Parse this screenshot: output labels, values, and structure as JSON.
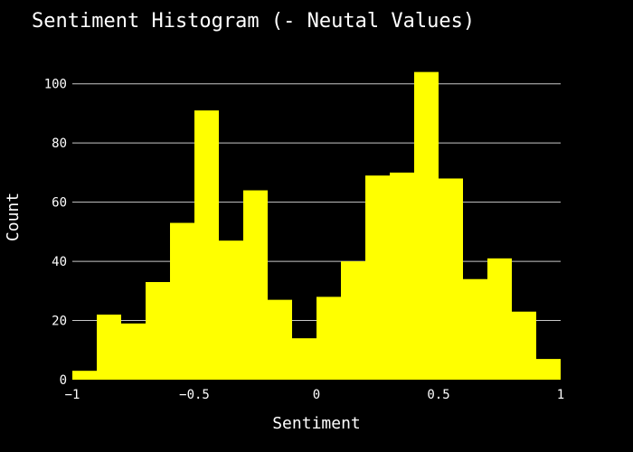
{
  "chart_data": {
    "type": "bar",
    "title": "Sentiment Histogram (- Neutal Values)",
    "xlabel": "Sentiment",
    "ylabel": "Count",
    "bin_edges": [
      -1.0,
      -0.9,
      -0.8,
      -0.7,
      -0.6,
      -0.5,
      -0.4,
      -0.3,
      -0.2,
      -0.1,
      0.0,
      0.1,
      0.2,
      0.3,
      0.4,
      0.5,
      0.6,
      0.7,
      0.8,
      0.9,
      1.0
    ],
    "values": [
      3,
      22,
      19,
      33,
      53,
      91,
      47,
      64,
      27,
      14,
      28,
      40,
      69,
      70,
      104,
      68,
      34,
      41,
      23,
      7
    ],
    "xlim": [
      -1,
      1
    ],
    "ylim": [
      0,
      110
    ],
    "x_ticks": [
      -1,
      -0.5,
      0,
      0.5,
      1
    ],
    "x_tick_labels": [
      "−1",
      "−0.5",
      "0",
      "0.5",
      "1"
    ],
    "y_ticks": [
      0,
      20,
      40,
      60,
      80,
      100
    ],
    "y_tick_labels": [
      "0",
      "20",
      "40",
      "60",
      "80",
      "100"
    ],
    "grid": true,
    "bar_color": "#ffff00",
    "background": "#000000",
    "text_color": "#ffffff",
    "grid_color": "#c8c8c8"
  }
}
